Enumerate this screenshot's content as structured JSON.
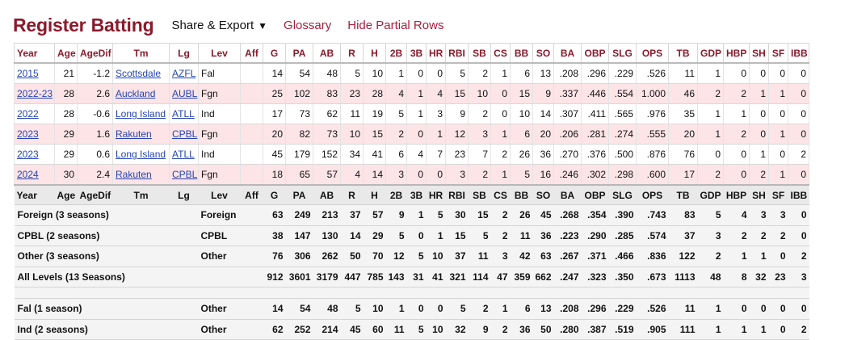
{
  "header": {
    "title": "Register Batting",
    "share_label": "Share & Export",
    "glossary_label": "Glossary",
    "hide_partial_label": "Hide Partial Rows"
  },
  "table": {
    "columns": [
      "Year",
      "Age",
      "AgeDif",
      "Tm",
      "Lg",
      "Lev",
      "Aff",
      "G",
      "PA",
      "AB",
      "R",
      "H",
      "2B",
      "3B",
      "HR",
      "RBI",
      "SB",
      "CS",
      "BB",
      "SO",
      "BA",
      "OBP",
      "SLG",
      "OPS",
      "TB",
      "GDP",
      "HBP",
      "SH",
      "SF",
      "IBB"
    ],
    "rows": [
      {
        "highlight": false,
        "cells": [
          "2015",
          "21",
          "-1.2",
          "Scottsdale",
          "AZFL",
          "Fal",
          "",
          "14",
          "54",
          "48",
          "5",
          "10",
          "1",
          "0",
          "0",
          "5",
          "2",
          "1",
          "6",
          "13",
          ".208",
          ".296",
          ".229",
          ".526",
          "11",
          "1",
          "0",
          "0",
          "0",
          "0"
        ]
      },
      {
        "highlight": true,
        "cells": [
          "2022-23",
          "28",
          "2.6",
          "Auckland",
          "AUBL",
          "Fgn",
          "",
          "25",
          "102",
          "83",
          "23",
          "28",
          "4",
          "1",
          "4",
          "15",
          "10",
          "0",
          "15",
          "9",
          ".337",
          ".446",
          ".554",
          "1.000",
          "46",
          "2",
          "2",
          "1",
          "1",
          "0"
        ]
      },
      {
        "highlight": false,
        "cells": [
          "2022",
          "28",
          "-0.6",
          "Long Island",
          "ATLL",
          "Ind",
          "",
          "17",
          "73",
          "62",
          "11",
          "19",
          "5",
          "1",
          "3",
          "9",
          "2",
          "0",
          "10",
          "14",
          ".307",
          ".411",
          ".565",
          ".976",
          "35",
          "1",
          "1",
          "0",
          "0",
          "0"
        ]
      },
      {
        "highlight": true,
        "cells": [
          "2023",
          "29",
          "1.6",
          "Rakuten",
          "CPBL",
          "Fgn",
          "",
          "20",
          "82",
          "73",
          "10",
          "15",
          "2",
          "0",
          "1",
          "12",
          "3",
          "1",
          "6",
          "20",
          ".206",
          ".281",
          ".274",
          ".555",
          "20",
          "1",
          "2",
          "0",
          "1",
          "0"
        ]
      },
      {
        "highlight": false,
        "cells": [
          "2023",
          "29",
          "0.6",
          "Long Island",
          "ATLL",
          "Ind",
          "",
          "45",
          "179",
          "152",
          "34",
          "41",
          "6",
          "4",
          "7",
          "23",
          "7",
          "2",
          "26",
          "36",
          ".270",
          ".376",
          ".500",
          ".876",
          "76",
          "0",
          "0",
          "1",
          "0",
          "2"
        ]
      },
      {
        "highlight": true,
        "cells": [
          "2024",
          "30",
          "2.4",
          "Rakuten",
          "CPBL",
          "Fgn",
          "",
          "18",
          "65",
          "57",
          "4",
          "14",
          "3",
          "0",
          "0",
          "3",
          "2",
          "1",
          "5",
          "16",
          ".246",
          ".302",
          ".298",
          ".600",
          "17",
          "2",
          "0",
          "2",
          "1",
          "0"
        ]
      }
    ],
    "summary": [
      {
        "label": "Foreign (3 seasons)",
        "level": "Foreign",
        "stats": [
          "63",
          "249",
          "213",
          "37",
          "57",
          "9",
          "1",
          "5",
          "30",
          "15",
          "2",
          "26",
          "45",
          ".268",
          ".354",
          ".390",
          ".743",
          "83",
          "5",
          "4",
          "3",
          "3",
          "0"
        ]
      },
      {
        "label": "CPBL (2 seasons)",
        "level": "CPBL",
        "stats": [
          "38",
          "147",
          "130",
          "14",
          "29",
          "5",
          "0",
          "1",
          "15",
          "5",
          "2",
          "11",
          "36",
          ".223",
          ".290",
          ".285",
          ".574",
          "37",
          "3",
          "2",
          "2",
          "2",
          "0"
        ]
      },
      {
        "label": "Other (3 seasons)",
        "level": "Other",
        "stats": [
          "76",
          "306",
          "262",
          "50",
          "70",
          "12",
          "5",
          "10",
          "37",
          "11",
          "3",
          "42",
          "63",
          ".267",
          ".371",
          ".466",
          ".836",
          "122",
          "2",
          "1",
          "1",
          "0",
          "2"
        ]
      },
      {
        "label": "All Levels (13 Seasons)",
        "level": "",
        "stats": [
          "912",
          "3601",
          "3179",
          "447",
          "785",
          "143",
          "31",
          "41",
          "321",
          "114",
          "47",
          "359",
          "662",
          ".247",
          ".323",
          ".350",
          ".673",
          "1113",
          "48",
          "8",
          "32",
          "23",
          "3"
        ]
      }
    ],
    "summary2": [
      {
        "label": "Fal (1 season)",
        "level": "Other",
        "stats": [
          "14",
          "54",
          "48",
          "5",
          "10",
          "1",
          "0",
          "0",
          "5",
          "2",
          "1",
          "6",
          "13",
          ".208",
          ".296",
          ".229",
          ".526",
          "11",
          "1",
          "0",
          "0",
          "0",
          "0"
        ]
      },
      {
        "label": "Ind (2 seasons)",
        "level": "Other",
        "stats": [
          "62",
          "252",
          "214",
          "45",
          "60",
          "11",
          "5",
          "10",
          "32",
          "9",
          "2",
          "36",
          "50",
          ".280",
          ".387",
          ".519",
          ".905",
          "111",
          "1",
          "1",
          "1",
          "0",
          "2"
        ]
      }
    ]
  }
}
